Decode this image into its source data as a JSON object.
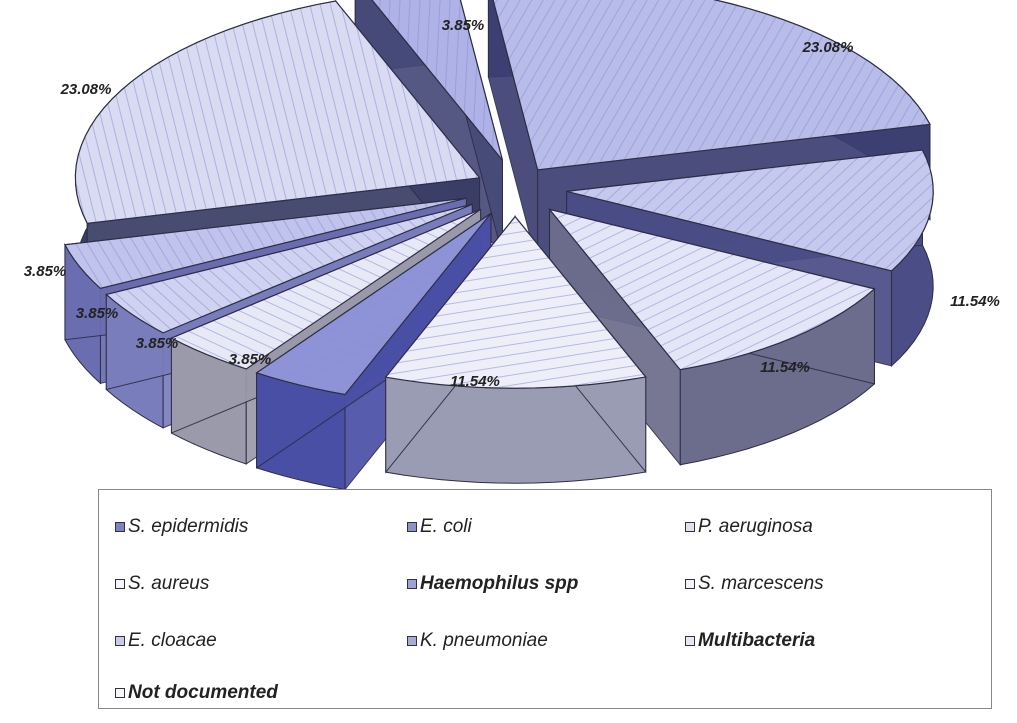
{
  "chart_data": {
    "type": "pie",
    "title": "",
    "slices": [
      {
        "label": "S. epidermidis",
        "value": 23.08,
        "value_label": "23.08%",
        "color": "#b8bce8",
        "side": "#3c3f72"
      },
      {
        "label": "E. coli",
        "value": 11.54,
        "value_label": "11.54%",
        "color": "#c6c9ee",
        "side": "#4a4d86"
      },
      {
        "label": "P. aeruginosa",
        "value": 11.54,
        "value_label": "11.54%",
        "color": "#e4e6f8",
        "side": "#6c6c8c"
      },
      {
        "label": "S. aureus",
        "value": 11.54,
        "value_label": "11.54%",
        "color": "#eeeef8",
        "side": "#9a9cb4"
      },
      {
        "label": "Haemophilus spp",
        "value": 3.85,
        "value_label": "3.85%",
        "color": "#8e93d8",
        "side": "#4a4fa6"
      },
      {
        "label": "S. marcescens",
        "value": 3.85,
        "value_label": "3.85%",
        "color": "#e8e9f6",
        "side": "#9a9aaa"
      },
      {
        "label": "E. cloacae",
        "value": 3.85,
        "value_label": "3.85%",
        "color": "#cfd2f0",
        "side": "#7a7dbc"
      },
      {
        "label": "K. pneumoniae",
        "value": 3.85,
        "value_label": "3.85%",
        "color": "#c0c3ec",
        "side": "#6a6db0"
      },
      {
        "label": "Multibacteria",
        "value": 23.08,
        "value_label": "23.08%",
        "color": "#d9dbf2",
        "side": "#3a3d66"
      },
      {
        "label": "Not documented",
        "value": 3.85,
        "value_label": "3.85%",
        "color": "#aeb2e6",
        "side": "#464a78"
      }
    ]
  },
  "legend": {
    "items": [
      {
        "label": "S. epidermidis"
      },
      {
        "label": "E. coli"
      },
      {
        "label": "P. aeruginosa"
      },
      {
        "label": "S. aureus"
      },
      {
        "label": "Haemophilus spp"
      },
      {
        "label": "S. marcescens"
      },
      {
        "label": "E. cloacae"
      },
      {
        "label": "K. pneumoniae"
      },
      {
        "label": "Multibacteria"
      },
      {
        "label": "Not documented"
      }
    ]
  }
}
